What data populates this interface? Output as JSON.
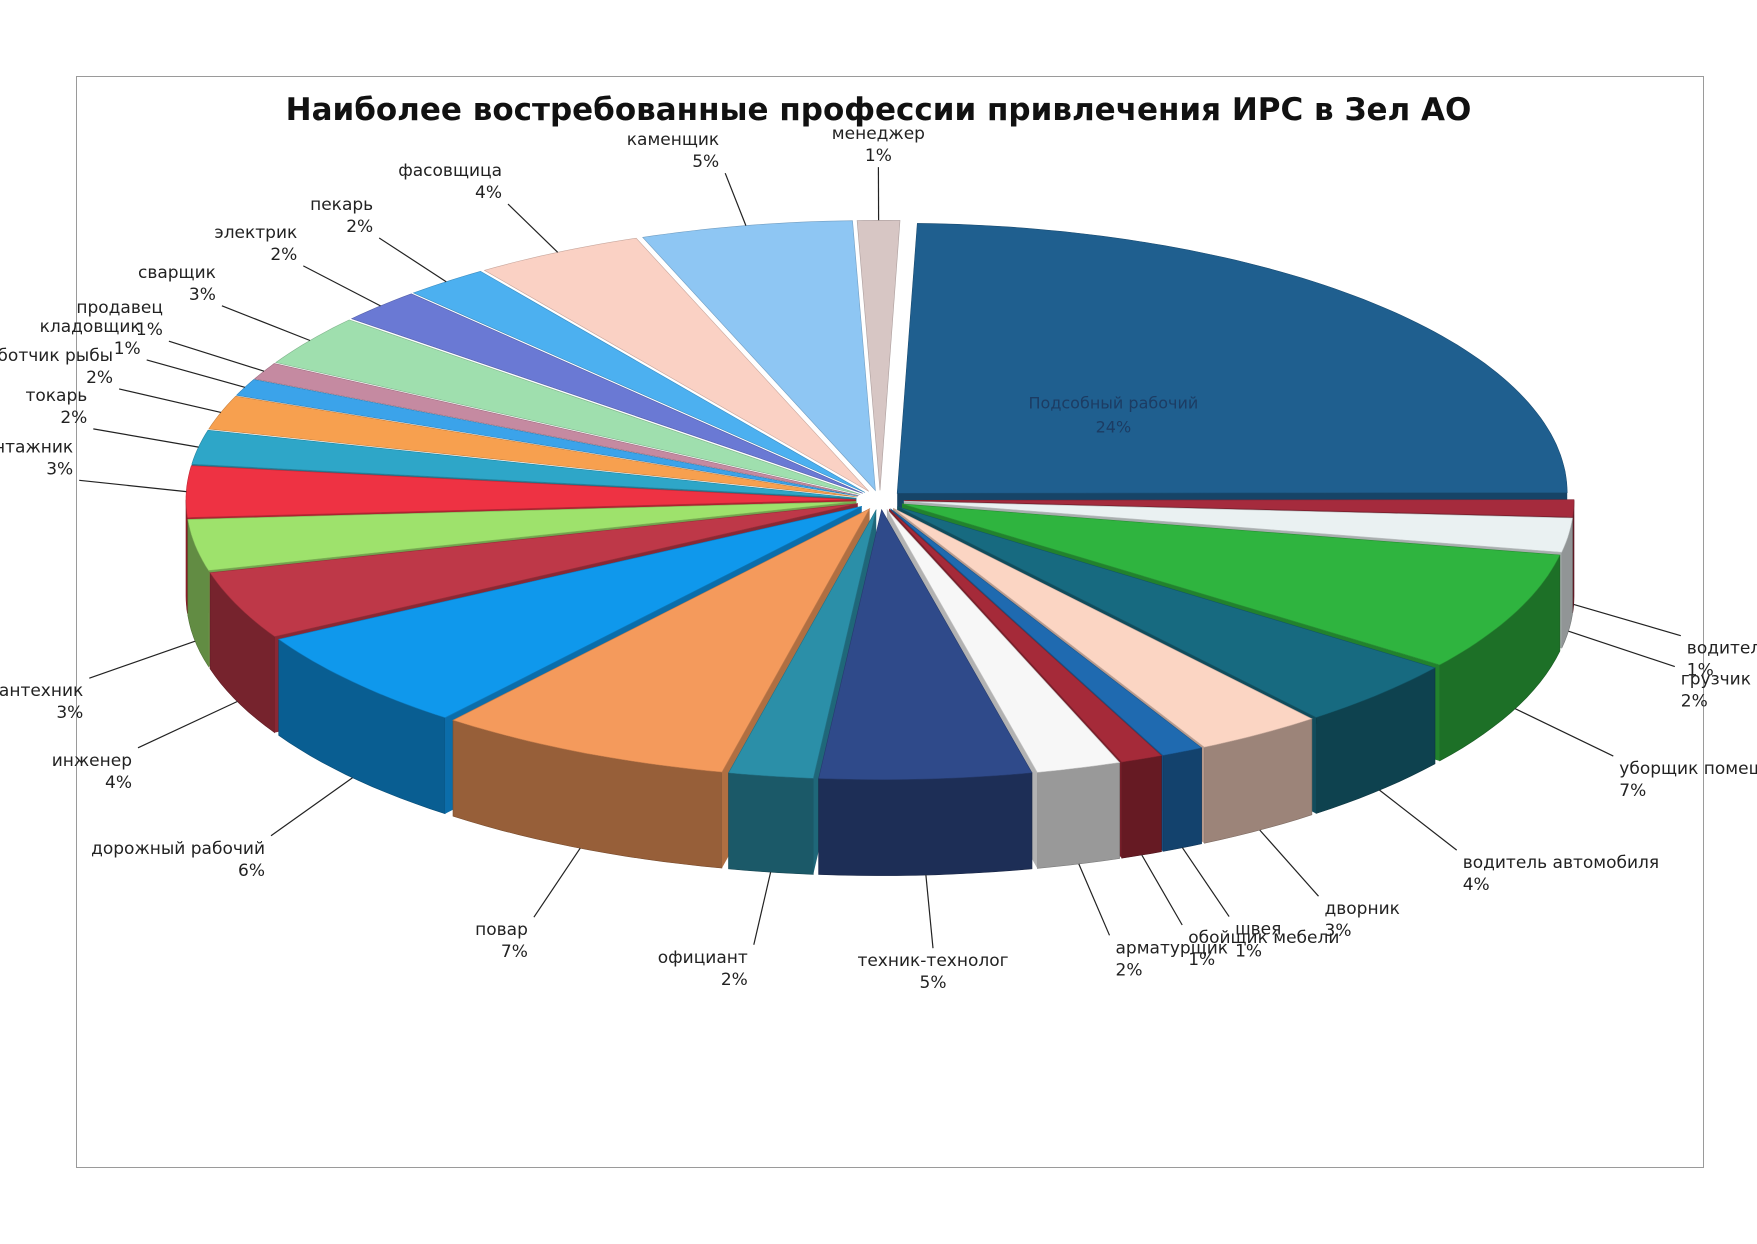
{
  "chart_data": {
    "type": "pie",
    "title": "Наиболее востребованные профессии привлечения ИРС в Зел АО",
    "slices": [
      {
        "label": "Подсобный рабочий",
        "pct": "24%",
        "value": 24,
        "color": "#1f5f8f"
      },
      {
        "label": "водитель погрузчика",
        "pct": "1%",
        "value": 1,
        "color": "#a52b3d"
      },
      {
        "label": "грузчик",
        "pct": "2%",
        "value": 2,
        "color": "#eaf1f2"
      },
      {
        "label": "уборщик помещений",
        "pct": "7%",
        "value": 7,
        "color": "#2fb43f"
      },
      {
        "label": "водитель автомобиля",
        "pct": "4%",
        "value": 4,
        "color": "#176a80"
      },
      {
        "label": "дворник",
        "pct": "3%",
        "value": 3,
        "color": "#fbd5c3"
      },
      {
        "label": "швея",
        "pct": "1%",
        "value": 1,
        "color": "#1f6ab0"
      },
      {
        "label": "обойщик мебели",
        "pct": "1%",
        "value": 1,
        "color": "#a52a39"
      },
      {
        "label": "арматурщик",
        "pct": "2%",
        "value": 2,
        "color": "#f7f7f7"
      },
      {
        "label": "техник-технолог",
        "pct": "5%",
        "value": 5,
        "color": "#2f4a8a"
      },
      {
        "label": "официант",
        "pct": "2%",
        "value": 2,
        "color": "#2b8fa8"
      },
      {
        "label": "повар",
        "pct": "7%",
        "value": 7,
        "color": "#f49a5c"
      },
      {
        "label": "дорожный рабочий",
        "pct": "6%",
        "value": 6,
        "color": "#0f98ec"
      },
      {
        "label": "инженер",
        "pct": "4%",
        "value": 4,
        "color": "#be3848"
      },
      {
        "label": "слесарь-сантехник",
        "pct": "3%",
        "value": 3,
        "color": "#9ee26c"
      },
      {
        "label": "монтажник",
        "pct": "3%",
        "value": 3,
        "color": "#ee3243"
      },
      {
        "label": "токарь",
        "pct": "2%",
        "value": 2,
        "color": "#2ea6c8"
      },
      {
        "label": "обработчик рыбы",
        "pct": "2%",
        "value": 2,
        "color": "#f7a04f"
      },
      {
        "label": "кладовщик",
        "pct": "1%",
        "value": 1,
        "color": "#3ba3ea"
      },
      {
        "label": "продавец",
        "pct": "1%",
        "value": 1,
        "color": "#c58aa1"
      },
      {
        "label": "сварщик",
        "pct": "3%",
        "value": 3,
        "color": "#9fdfae"
      },
      {
        "label": "электрик",
        "pct": "2%",
        "value": 2,
        "color": "#6a79d4"
      },
      {
        "label": "пекарь",
        "pct": "2%",
        "value": 2,
        "color": "#4cb0f0"
      },
      {
        "label": "фасовщица",
        "pct": "4%",
        "value": 4,
        "color": "#fad1c4"
      },
      {
        "label": "каменщик",
        "pct": "5%",
        "value": 5,
        "color": "#8ec6f3"
      },
      {
        "label": "менеджер",
        "pct": "1%",
        "value": 1,
        "color": "#d7c6c4"
      }
    ]
  }
}
